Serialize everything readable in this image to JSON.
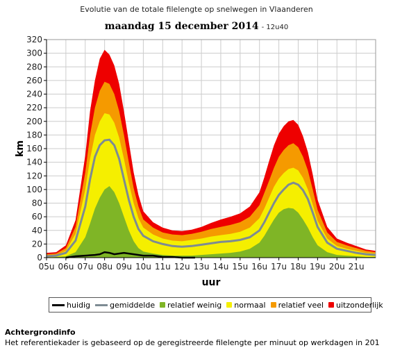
{
  "header": {
    "title": "Evolutie van de totale filelengte op snelwegen in Vlaanderen",
    "date": "maandag 15 december 2014",
    "time": "- 12u40"
  },
  "info": {
    "heading": "Achtergrondinfo",
    "text": "Het referentiekader is gebaseerd op de geregistreerde filelengte per minuut op werkdagen in 201"
  },
  "colors": {
    "huidig": "#000000",
    "gemiddelde": "#7d8b93",
    "relatief_weinig": "#7fb526",
    "normaal": "#f5ef00",
    "relatief_veel": "#f59a00",
    "uitzonderlijk": "#ee0000",
    "grid": "#cccccc",
    "axis": "#000000"
  },
  "legend": [
    {
      "key": "huidig",
      "label": "huidig",
      "kind": "line"
    },
    {
      "key": "gemiddelde",
      "label": "gemiddelde",
      "kind": "line"
    },
    {
      "key": "relatief_weinig",
      "label": "relatief weinig",
      "kind": "dot"
    },
    {
      "key": "normaal",
      "label": "normaal",
      "kind": "dot"
    },
    {
      "key": "relatief_veel",
      "label": "relatief veel",
      "kind": "dot"
    },
    {
      "key": "uitzonderlijk",
      "label": "uitzonderlijk",
      "kind": "dot"
    }
  ],
  "chart_data": {
    "type": "area",
    "title": "Evolutie van de totale filelengte op snelwegen in Vlaanderen",
    "subtitle": "maandag 15 december 2014 - 12u40",
    "xlabel": "uur",
    "ylabel": "km",
    "xlim": [
      5,
      22
    ],
    "ylim": [
      0,
      320
    ],
    "y_ticks": [
      0,
      20,
      40,
      60,
      80,
      100,
      120,
      140,
      160,
      180,
      200,
      220,
      240,
      260,
      280,
      300,
      320
    ],
    "x_ticks": [
      {
        "v": 5,
        "label": "05u"
      },
      {
        "v": 6,
        "label": "06u"
      },
      {
        "v": 7,
        "label": "07u"
      },
      {
        "v": 8,
        "label": "08u"
      },
      {
        "v": 9,
        "label": "09u"
      },
      {
        "v": 10,
        "label": "10u"
      },
      {
        "v": 11,
        "label": "11u"
      },
      {
        "v": 12,
        "label": "12u"
      },
      {
        "v": 13,
        "label": "13u"
      },
      {
        "v": 14,
        "label": "14u"
      },
      {
        "v": 15,
        "label": "15u"
      },
      {
        "v": 16,
        "label": "16u"
      },
      {
        "v": 17,
        "label": "17u"
      },
      {
        "v": 18,
        "label": "18u"
      },
      {
        "v": 19,
        "label": "19u"
      },
      {
        "v": 20,
        "label": "20u"
      },
      {
        "v": 21,
        "label": "21u"
      }
    ],
    "grid": true,
    "legend_position": "bottom",
    "x": [
      5.0,
      5.5,
      6.0,
      6.5,
      7.0,
      7.25,
      7.5,
      7.75,
      8.0,
      8.25,
      8.5,
      8.75,
      9.0,
      9.25,
      9.5,
      9.75,
      10.0,
      10.5,
      11.0,
      11.5,
      12.0,
      12.5,
      13.0,
      13.5,
      14.0,
      14.5,
      15.0,
      15.5,
      16.0,
      16.25,
      16.5,
      16.75,
      17.0,
      17.25,
      17.5,
      17.75,
      18.0,
      18.25,
      18.5,
      18.75,
      19.0,
      19.5,
      20.0,
      20.5,
      21.0,
      21.5,
      22.0
    ],
    "series": [
      {
        "name": "relatief weinig",
        "key": "relatief_weinig",
        "values": [
          0,
          1,
          2,
          8,
          30,
          50,
          72,
          88,
          100,
          105,
          96,
          80,
          60,
          40,
          24,
          14,
          9,
          6,
          4,
          3,
          3,
          3,
          4,
          5,
          6,
          7,
          9,
          13,
          22,
          32,
          44,
          56,
          66,
          71,
          73,
          72,
          66,
          56,
          44,
          30,
          18,
          8,
          4,
          3,
          2,
          1,
          1
        ]
      },
      {
        "name": "gemiddelde",
        "key": "gemiddelde",
        "values": [
          2,
          3,
          7,
          25,
          75,
          115,
          148,
          165,
          172,
          173,
          165,
          145,
          115,
          85,
          60,
          42,
          32,
          24,
          20,
          17,
          16,
          17,
          19,
          21,
          23,
          24,
          26,
          30,
          40,
          52,
          66,
          80,
          92,
          100,
          107,
          110,
          107,
          99,
          86,
          66,
          45,
          22,
          13,
          10,
          7,
          5,
          4
        ]
      },
      {
        "name": "normaal",
        "key": "normaal",
        "values": [
          3,
          4,
          10,
          35,
          100,
          145,
          180,
          200,
          212,
          210,
          198,
          176,
          145,
          110,
          80,
          58,
          44,
          34,
          28,
          25,
          24,
          26,
          28,
          31,
          33,
          35,
          38,
          44,
          58,
          72,
          88,
          104,
          116,
          124,
          130,
          132,
          128,
          117,
          100,
          78,
          54,
          28,
          17,
          13,
          10,
          7,
          6
        ]
      },
      {
        "name": "relatief veel",
        "key": "relatief_veel",
        "values": [
          5,
          6,
          14,
          45,
          125,
          180,
          220,
          245,
          258,
          255,
          240,
          215,
          180,
          140,
          102,
          75,
          56,
          44,
          37,
          34,
          33,
          35,
          38,
          42,
          45,
          48,
          52,
          60,
          77,
          95,
          113,
          132,
          148,
          158,
          165,
          168,
          162,
          148,
          128,
          100,
          70,
          37,
          23,
          18,
          14,
          10,
          8
        ]
      },
      {
        "name": "uitzonderlijk",
        "key": "uitzonderlijk",
        "values": [
          7,
          8,
          18,
          55,
          150,
          215,
          260,
          292,
          305,
          298,
          282,
          255,
          215,
          170,
          125,
          92,
          68,
          52,
          44,
          40,
          39,
          41,
          45,
          51,
          56,
          60,
          65,
          75,
          96,
          118,
          142,
          165,
          182,
          193,
          200,
          202,
          195,
          178,
          155,
          122,
          85,
          45,
          28,
          22,
          17,
          12,
          10
        ]
      },
      {
        "name": "huidig",
        "key": "huidig",
        "x": [
          6.0,
          6.5,
          7.0,
          7.5,
          7.75,
          8.0,
          8.25,
          8.5,
          8.75,
          9.0,
          9.5,
          10.0,
          10.5,
          11.0,
          11.5,
          12.0,
          12.67
        ],
        "values": [
          0,
          2,
          3,
          4,
          5,
          8,
          7,
          5,
          6,
          7,
          5,
          3,
          3,
          1,
          1,
          0,
          0
        ]
      }
    ]
  }
}
